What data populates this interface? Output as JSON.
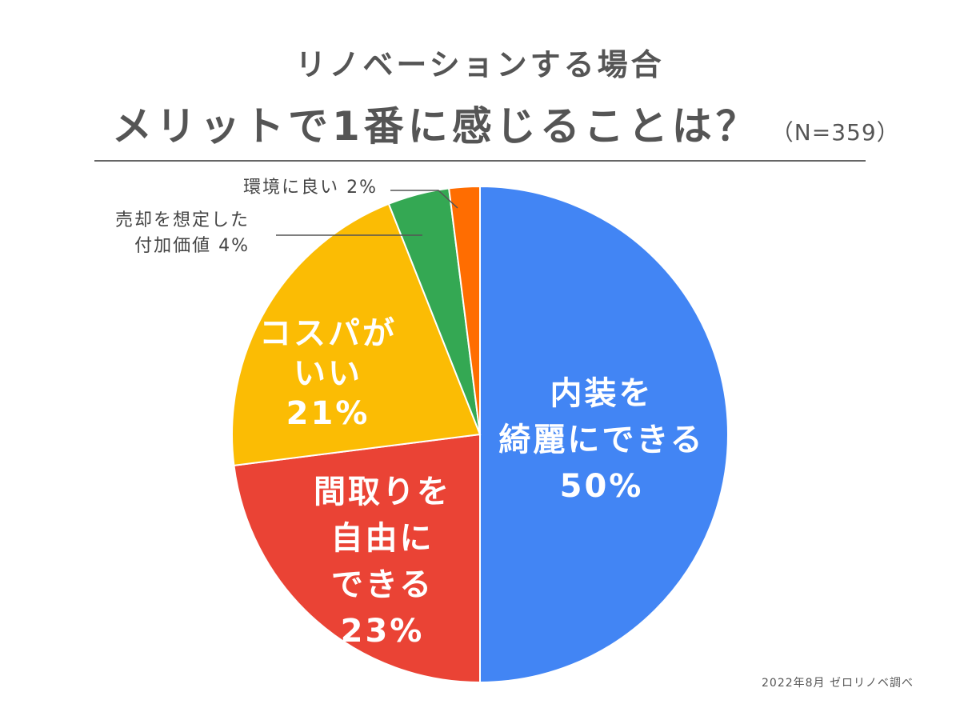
{
  "title": {
    "line1": "リノベーションする場合",
    "line2": "メリットで1番に感じることは？",
    "sample": "（N=359）"
  },
  "source_note": "2022年8月 ゼロリノベ調べ",
  "chart_data": {
    "type": "pie",
    "title": "リノベーションする場合 メリットで1番に感じることは？",
    "n": 359,
    "unit": "%",
    "start_angle_deg": 0,
    "direction": "clockwise",
    "slices": [
      {
        "label_lines": [
          "内装を",
          "綺麗にできる"
        ],
        "value": 50,
        "value_label": "50%",
        "color": "#4285F4",
        "label_position": "inside"
      },
      {
        "label_lines": [
          "間取りを",
          "自由に",
          "できる"
        ],
        "value": 23,
        "value_label": "23%",
        "color": "#EA4335",
        "label_position": "inside"
      },
      {
        "label_lines": [
          "コスパが",
          "いい"
        ],
        "value": 21,
        "value_label": "21%",
        "color": "#FBBC04",
        "label_position": "inside"
      },
      {
        "label_lines": [
          "売却を想定した",
          "付加価値 4%"
        ],
        "value": 4,
        "value_label": "",
        "color": "#34A853",
        "label_position": "callout"
      },
      {
        "label_lines": [
          "環境に良い 2%"
        ],
        "value": 2,
        "value_label": "",
        "color": "#FF6D01",
        "label_position": "callout"
      }
    ]
  }
}
